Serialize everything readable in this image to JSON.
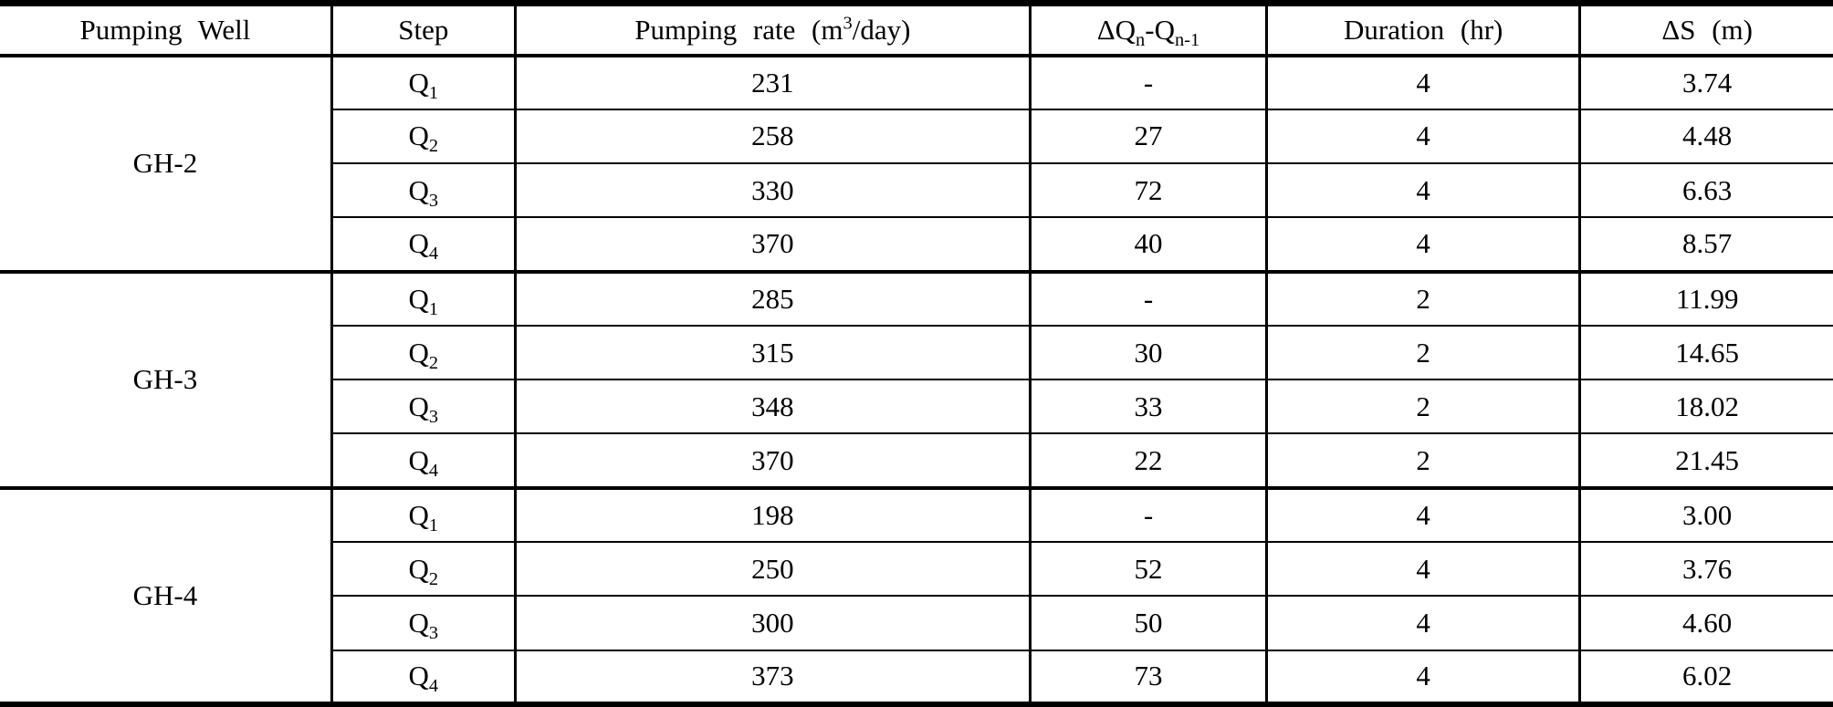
{
  "table": {
    "title_semantic": "Step-drawdown pumping test results",
    "headers": {
      "pumping_well": "Pumping Well",
      "step": "Step",
      "rate_prefix": "Pumping rate (m",
      "rate_sup": "3",
      "rate_suffix": "/day)",
      "dq_part1": "ΔQ",
      "dq_sub1": "n",
      "dq_part2": "-Q",
      "dq_sub2": "n-1",
      "duration": "Duration (hr)",
      "ds": "ΔS (m)"
    },
    "groups": [
      {
        "well": "GH-2",
        "rows": [
          {
            "step_base": "Q",
            "step_sub": "1",
            "rate": "231",
            "dq": "-",
            "duration": "4",
            "ds": "3.74"
          },
          {
            "step_base": "Q",
            "step_sub": "2",
            "rate": "258",
            "dq": "27",
            "duration": "4",
            "ds": "4.48"
          },
          {
            "step_base": "Q",
            "step_sub": "3",
            "rate": "330",
            "dq": "72",
            "duration": "4",
            "ds": "6.63"
          },
          {
            "step_base": "Q",
            "step_sub": "4",
            "rate": "370",
            "dq": "40",
            "duration": "4",
            "ds": "8.57"
          }
        ]
      },
      {
        "well": "GH-3",
        "rows": [
          {
            "step_base": "Q",
            "step_sub": "1",
            "rate": "285",
            "dq": "-",
            "duration": "2",
            "ds": "11.99"
          },
          {
            "step_base": "Q",
            "step_sub": "2",
            "rate": "315",
            "dq": "30",
            "duration": "2",
            "ds": "14.65"
          },
          {
            "step_base": "Q",
            "step_sub": "3",
            "rate": "348",
            "dq": "33",
            "duration": "2",
            "ds": "18.02"
          },
          {
            "step_base": "Q",
            "step_sub": "4",
            "rate": "370",
            "dq": "22",
            "duration": "2",
            "ds": "21.45"
          }
        ]
      },
      {
        "well": "GH-4",
        "rows": [
          {
            "step_base": "Q",
            "step_sub": "1",
            "rate": "198",
            "dq": "-",
            "duration": "4",
            "ds": "3.00"
          },
          {
            "step_base": "Q",
            "step_sub": "2",
            "rate": "250",
            "dq": "52",
            "duration": "4",
            "ds": "3.76"
          },
          {
            "step_base": "Q",
            "step_sub": "3",
            "rate": "300",
            "dq": "50",
            "duration": "4",
            "ds": "4.60"
          },
          {
            "step_base": "Q",
            "step_sub": "4",
            "rate": "373",
            "dq": "73",
            "duration": "4",
            "ds": "6.02"
          }
        ]
      }
    ]
  },
  "chart_data": {
    "type": "table",
    "title": "Step-drawdown pumping test data",
    "columns": [
      "Pumping Well",
      "Step",
      "Pumping rate (m3/day)",
      "dQn-Qn-1",
      "Duration (hr)",
      "dS (m)"
    ],
    "rows": [
      [
        "GH-2",
        "Q1",
        231,
        null,
        4,
        3.74
      ],
      [
        "GH-2",
        "Q2",
        258,
        27,
        4,
        4.48
      ],
      [
        "GH-2",
        "Q3",
        330,
        72,
        4,
        6.63
      ],
      [
        "GH-2",
        "Q4",
        370,
        40,
        4,
        8.57
      ],
      [
        "GH-3",
        "Q1",
        285,
        null,
        2,
        11.99
      ],
      [
        "GH-3",
        "Q2",
        315,
        30,
        2,
        14.65
      ],
      [
        "GH-3",
        "Q3",
        348,
        33,
        2,
        18.02
      ],
      [
        "GH-3",
        "Q4",
        370,
        22,
        2,
        21.45
      ],
      [
        "GH-4",
        "Q1",
        198,
        null,
        4,
        3.0
      ],
      [
        "GH-4",
        "Q2",
        250,
        52,
        4,
        3.76
      ],
      [
        "GH-4",
        "Q3",
        300,
        50,
        4,
        4.6
      ],
      [
        "GH-4",
        "Q4",
        373,
        73,
        4,
        6.02
      ]
    ]
  }
}
